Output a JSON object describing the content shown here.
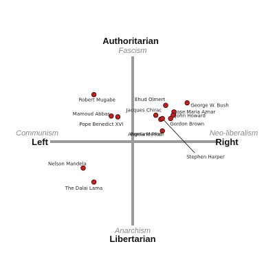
{
  "axes": {
    "top": {
      "main": "Authoritarian",
      "sub": "Fascism"
    },
    "bottom": {
      "main": "Libertarian",
      "sub": "Anarchism"
    },
    "left": {
      "main": "Left",
      "sub": "Communism"
    },
    "right": {
      "main": "Right",
      "sub": "Neo-liberalism"
    }
  },
  "people": [
    {
      "key": "robert-mugabe",
      "label": "Robert Mugabe",
      "x": -4.7,
      "y": 5.7
    },
    {
      "key": "mamoud-abbas",
      "label": "Mamoud Abbas",
      "x": -2.6,
      "y": 3.1
    },
    {
      "key": "pope-benedict-xvi",
      "label": "Pope Benedict XVI",
      "x": -1.8,
      "y": 3.0
    },
    {
      "key": "nelson-mandela",
      "label": "Nelson Mandela",
      "x": -6.0,
      "y": -3.2
    },
    {
      "key": "the-dalai-lama",
      "label": "The Dalai Lama",
      "x": -4.7,
      "y": -4.9
    },
    {
      "key": "ehud-olmert",
      "label": "Ehud Olmert",
      "x": 4.0,
      "y": 4.4
    },
    {
      "key": "george-w-bush",
      "label": "George W. Bush",
      "x": 6.6,
      "y": 4.7
    },
    {
      "key": "jose-maria-aznar",
      "label": "Jose Maria Aznar",
      "x": 5.0,
      "y": 3.6
    },
    {
      "key": "john-howard",
      "label": "John Howard",
      "x": 4.9,
      "y": 3.2
    },
    {
      "key": "gordon-brown",
      "label": "Gordon Brown",
      "x": 4.6,
      "y": 2.8
    },
    {
      "key": "jacques-chirac",
      "label": "Jacques Chirac",
      "x": 2.8,
      "y": 3.2
    },
    {
      "key": "romano-prodi",
      "label": "Romano Prodi",
      "x": 3.4,
      "y": 2.7
    },
    {
      "key": "stephen-harper",
      "label": "Stephen Harper",
      "x": 3.6,
      "y": 2.8
    },
    {
      "key": "angela-merkel",
      "label": "Angela Merkel",
      "x": 3.6,
      "y": 1.3
    }
  ],
  "colors": {
    "axis": "#9a9a9a",
    "dot_fill": "#cc1d1d",
    "dot_stroke": "#2a0000",
    "connector": "#000000"
  }
}
